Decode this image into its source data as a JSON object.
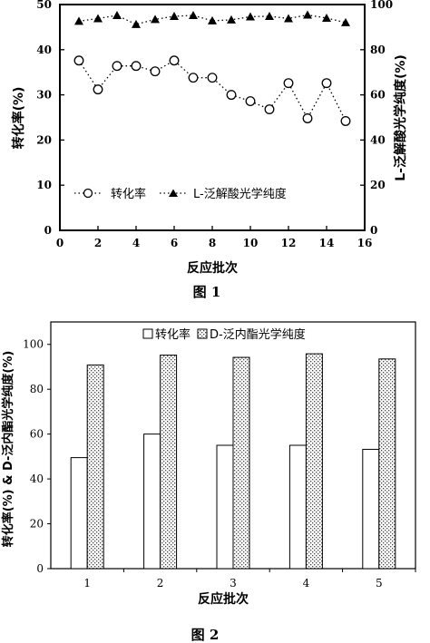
{
  "chart_data": [
    {
      "type": "scatter",
      "caption": "图 1",
      "xlabel": "反应批次",
      "ylabel": "转化率(%)",
      "y2label": "L-泛解酸光学纯度(%)",
      "xlim": [
        0,
        16
      ],
      "ylim": [
        0,
        50
      ],
      "y2lim": [
        0,
        100
      ],
      "xticks": [
        "0",
        "2",
        "4",
        "6",
        "8",
        "10",
        "12",
        "14",
        "16"
      ],
      "yticks": [
        "0",
        "10",
        "20",
        "30",
        "40",
        "50"
      ],
      "y2ticks": [
        "0",
        "20",
        "40",
        "60",
        "80",
        "100"
      ],
      "legend_position": "bottom-left",
      "series": [
        {
          "name": "转化率",
          "axis": "left",
          "marker": "open-circle",
          "line": "dotted",
          "x": [
            1,
            2,
            3,
            4,
            5,
            6,
            7,
            8,
            9,
            10,
            11,
            12,
            13,
            14,
            15
          ],
          "values": [
            37.6,
            31.2,
            36.4,
            36.4,
            35.2,
            37.6,
            33.8,
            33.8,
            30,
            28.6,
            26.8,
            32.6,
            24.8,
            32.6,
            24.2
          ]
        },
        {
          "name": "L-泛解酸光学纯度",
          "axis": "right",
          "marker": "filled-triangle",
          "line": "dotted",
          "x": [
            1,
            2,
            3,
            4,
            5,
            6,
            7,
            8,
            9,
            10,
            11,
            12,
            13,
            14,
            15
          ],
          "values": [
            92.6,
            93.8,
            95.2,
            91.2,
            93.4,
            94.8,
            95.2,
            92.8,
            93.2,
            94.6,
            94.8,
            93.8,
            95.4,
            94,
            92
          ]
        }
      ]
    },
    {
      "type": "bar",
      "caption": "图 2",
      "xlabel": "反应批次",
      "ylabel": "转化率(%) & D-泛内酯光学纯度(%)",
      "ylim": [
        0,
        110
      ],
      "yticks": [
        "0",
        "20",
        "40",
        "60",
        "80",
        "100"
      ],
      "categories": [
        "1",
        "2",
        "3",
        "4",
        "5"
      ],
      "legend_position": "top",
      "series": [
        {
          "name": "转化率",
          "fill": "white",
          "values": [
            49.5,
            60,
            55,
            55,
            53.2
          ]
        },
        {
          "name": "D-泛内酯光学纯度",
          "fill": "stippled",
          "values": [
            90.8,
            95.2,
            94.2,
            95.8,
            93.5
          ]
        }
      ]
    }
  ]
}
